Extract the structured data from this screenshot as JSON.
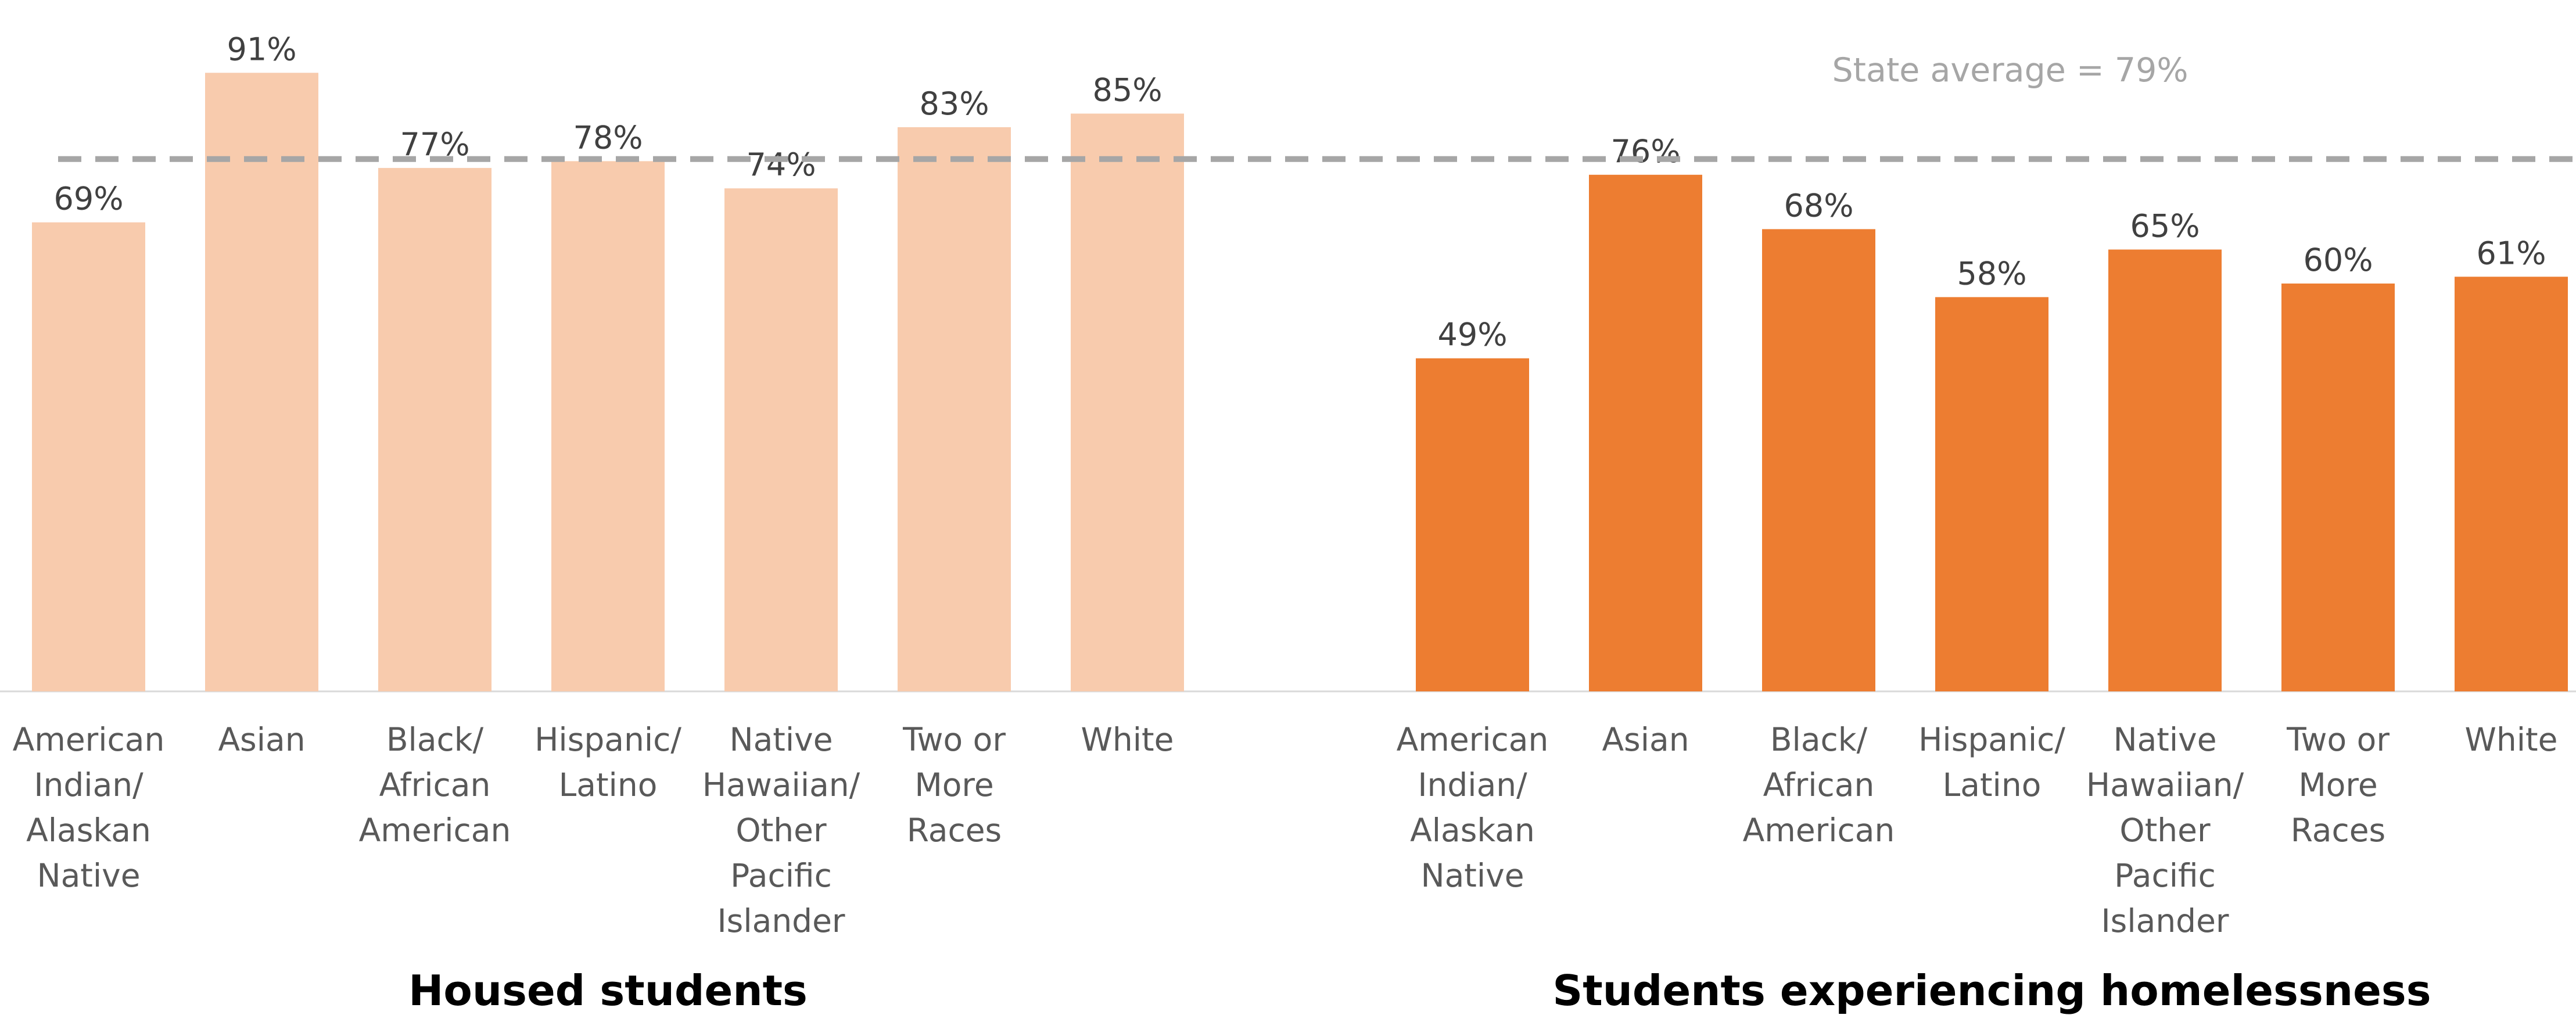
{
  "chart_data": {
    "type": "bar",
    "categories": [
      [
        "American",
        "Indian/",
        "Alaskan",
        "Native"
      ],
      [
        "Asian"
      ],
      [
        "Black/",
        "African",
        "American"
      ],
      [
        "Hispanic/",
        "Latino"
      ],
      [
        "Native",
        "Hawaiian/",
        "Other",
        "Pacific",
        "Islander"
      ],
      [
        "Two or",
        "More",
        "Races"
      ],
      [
        "White"
      ]
    ],
    "groups": [
      {
        "title": "Housed students",
        "color": "#f8cbad",
        "values": [
          69,
          91,
          77,
          78,
          74,
          83,
          85
        ],
        "labels": [
          "69%",
          "91%",
          "77%",
          "78%",
          "74%",
          "83%",
          "85%"
        ]
      },
      {
        "title": "Students experiencing homelessness",
        "color": "#ed7d31",
        "values": [
          49,
          76,
          68,
          58,
          65,
          60,
          61
        ],
        "labels": [
          "49%",
          "76%",
          "68%",
          "58%",
          "65%",
          "60%",
          "61%"
        ]
      }
    ],
    "reference_line": {
      "value": 79,
      "label": "State average = 79%",
      "color": "#a6a6a6",
      "style": "dashed"
    },
    "ylim": [
      0,
      100
    ],
    "grid": false,
    "legend": "none"
  }
}
